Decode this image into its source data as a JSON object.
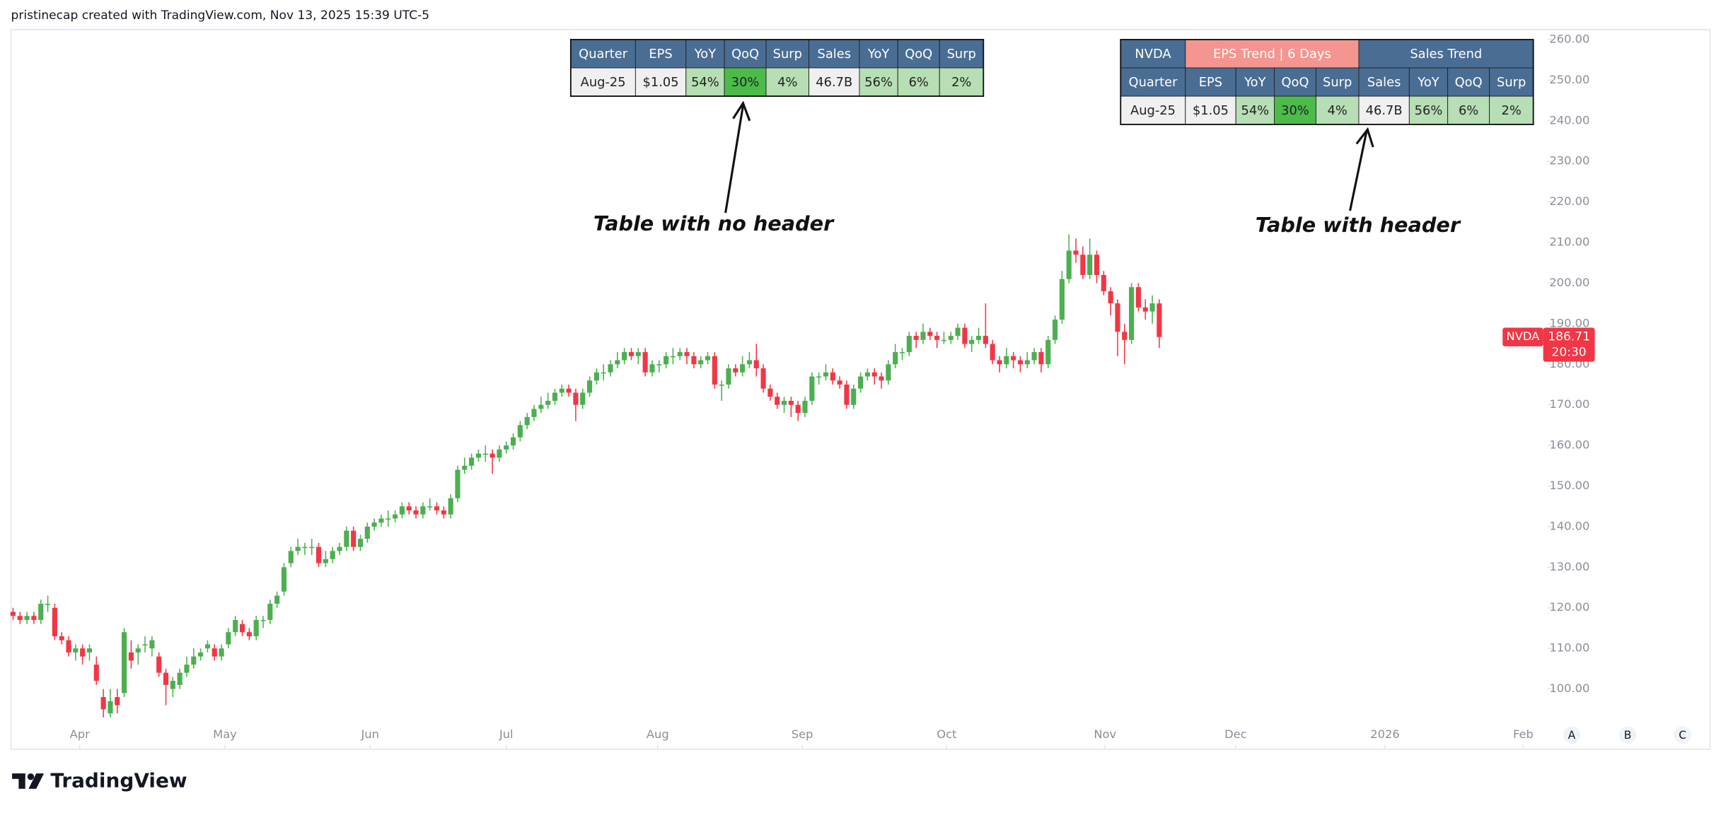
{
  "header": {
    "credit": "pristinecap created with TradingView.com, Nov 13, 2025 15:39 UTC-5"
  },
  "chart_data": {
    "type": "candlestick",
    "up_color": "#4caf50",
    "down_color": "#f23645",
    "series": [
      {
        "open": [
          119,
          118,
          117,
          118,
          117,
          121,
          120,
          113,
          112,
          109,
          110,
          109,
          106,
          98,
          94,
          98,
          99,
          109,
          109,
          111,
          110,
          108,
          104,
          100,
          101,
          104,
          106,
          108,
          110,
          110,
          108,
          111,
          114,
          116,
          114,
          113,
          117,
          117,
          121,
          124,
          131,
          134,
          135,
          135,
          135,
          131,
          132,
          134,
          135,
          139,
          135,
          137,
          140,
          141,
          142,
          142,
          143,
          145,
          144,
          143,
          145,
          145,
          144,
          143,
          147,
          154,
          155,
          157,
          158,
          158,
          157,
          159,
          160,
          162,
          165,
          167,
          169,
          170,
          171,
          173,
          174,
          173,
          170,
          173,
          176,
          178,
          178,
          180,
          181,
          183,
          182,
          183,
          178,
          180,
          180,
          182,
          182,
          183,
          182,
          180,
          181,
          182,
          175,
          175,
          179,
          178,
          180,
          181,
          179,
          174,
          172,
          170,
          171,
          170,
          168,
          171,
          177,
          177,
          178,
          176,
          175,
          170,
          174,
          177,
          178,
          177,
          176,
          180,
          183,
          183,
          187,
          186,
          188,
          187,
          186,
          186,
          187,
          189,
          185,
          186,
          187,
          185,
          181,
          180,
          182,
          181,
          180,
          181,
          183,
          180,
          186,
          191,
          201,
          208,
          207,
          202,
          207,
          202,
          198,
          195,
          188,
          186,
          199,
          194,
          193,
          195
        ],
        "high": [
          120,
          119,
          119,
          119,
          122,
          123,
          121,
          114,
          113,
          111,
          111,
          111,
          108,
          100,
          100,
          100,
          115,
          112,
          111,
          113,
          113,
          109,
          105,
          103,
          105,
          108,
          110,
          110,
          112,
          111,
          111,
          115,
          118,
          117,
          115,
          118,
          118,
          122,
          124,
          131,
          135,
          137,
          136,
          137,
          136,
          134,
          135,
          136,
          140,
          140,
          138,
          141,
          142,
          143,
          144,
          144,
          146,
          146,
          145,
          146,
          147,
          146,
          145,
          148,
          155,
          157,
          158,
          159,
          160,
          159,
          160,
          161,
          163,
          166,
          168,
          170,
          172,
          173,
          174,
          175,
          175,
          174,
          174,
          177,
          179,
          180,
          181,
          183,
          184,
          184,
          184,
          184,
          181,
          181,
          183,
          184,
          184,
          184,
          183,
          182,
          183,
          183,
          176,
          180,
          180,
          182,
          183,
          185,
          180,
          175,
          173,
          172,
          172,
          171,
          172,
          178,
          178,
          180,
          179,
          177,
          176,
          175,
          178,
          179,
          179,
          178,
          181,
          185,
          184,
          188,
          188,
          190,
          189,
          188,
          188,
          188,
          190,
          190,
          187,
          189,
          195,
          186,
          182,
          184,
          183,
          182,
          183,
          184,
          184,
          187,
          192,
          203,
          212,
          211,
          209,
          211,
          208,
          203,
          199,
          196,
          190,
          200,
          200,
          196,
          197,
          196
        ],
        "low": [
          117,
          116,
          116,
          116,
          116,
          119,
          112,
          111,
          108,
          107,
          106,
          107,
          101,
          93,
          93,
          94,
          98,
          105,
          106,
          109,
          108,
          103,
          96,
          98,
          100,
          103,
          105,
          107,
          109,
          107,
          107,
          110,
          113,
          113,
          112,
          112,
          115,
          116,
          120,
          123,
          130,
          133,
          133,
          133,
          130,
          130,
          131,
          133,
          134,
          134,
          134,
          136,
          139,
          140,
          140,
          141,
          142,
          143,
          142,
          142,
          144,
          143,
          142,
          142,
          146,
          153,
          154,
          156,
          156,
          153,
          156,
          158,
          159,
          161,
          164,
          166,
          168,
          169,
          170,
          172,
          172,
          166,
          169,
          172,
          175,
          176,
          177,
          179,
          180,
          181,
          180,
          177,
          177,
          178,
          179,
          180,
          181,
          180,
          179,
          179,
          180,
          174,
          171,
          174,
          177,
          177,
          179,
          177,
          173,
          171,
          169,
          168,
          167,
          166,
          167,
          170,
          175,
          176,
          175,
          174,
          169,
          169,
          173,
          176,
          175,
          174,
          175,
          179,
          181,
          182,
          184,
          185,
          186,
          184,
          185,
          185,
          186,
          184,
          183,
          185,
          184,
          180,
          178,
          179,
          179,
          178,
          179,
          180,
          178,
          179,
          185,
          190,
          200,
          205,
          201,
          201,
          200,
          197,
          192,
          182,
          180,
          185,
          193,
          191,
          190,
          184
        ],
        "close": [
          118,
          117,
          118,
          117,
          121,
          121,
          113,
          112,
          109,
          110,
          108,
          110,
          102,
          95,
          97,
          96,
          114,
          107,
          110,
          111,
          112,
          104,
          101,
          102,
          104,
          106,
          108,
          109,
          111,
          108,
          110,
          114,
          117,
          114,
          113,
          117,
          117,
          121,
          123,
          130,
          134,
          135,
          135,
          135,
          131,
          132,
          134,
          135,
          139,
          135,
          137,
          140,
          141,
          142,
          142,
          143,
          145,
          144,
          143,
          145,
          145,
          144,
          143,
          147,
          154,
          155,
          157,
          158,
          158,
          157,
          159,
          160,
          162,
          165,
          167,
          169,
          170,
          171,
          173,
          174,
          173,
          170,
          173,
          176,
          178,
          178,
          180,
          181,
          183,
          182,
          183,
          178,
          180,
          180,
          182,
          182,
          183,
          182,
          180,
          181,
          182,
          175,
          175,
          179,
          178,
          180,
          181,
          179,
          174,
          172,
          170,
          171,
          170,
          168,
          171,
          177,
          177,
          178,
          176,
          175,
          170,
          174,
          177,
          178,
          177,
          176,
          180,
          183,
          183,
          187,
          186,
          188,
          187,
          186,
          186,
          187,
          189,
          185,
          186,
          187,
          185,
          181,
          180,
          182,
          181,
          180,
          181,
          183,
          180,
          186,
          191,
          201,
          208,
          207,
          202,
          207,
          202,
          198,
          195,
          188,
          186,
          199,
          194,
          193,
          195,
          186.71
        ]
      }
    ],
    "xlim": [
      -0.3,
      220.9
    ],
    "xticks": [
      {
        "value": 9.6,
        "label": "Apr"
      },
      {
        "value": 30.5,
        "label": "May"
      },
      {
        "value": 51.4,
        "label": "Jun"
      },
      {
        "value": 71.0,
        "label": "Jul"
      },
      {
        "value": 92.8,
        "label": "Aug"
      },
      {
        "value": 113.6,
        "label": "Sep"
      },
      {
        "value": 134.4,
        "label": "Oct"
      },
      {
        "value": 157.2,
        "label": "Nov"
      },
      {
        "value": 176.0,
        "label": "Dec"
      },
      {
        "value": 197.5,
        "label": "2026"
      },
      {
        "value": 217.4,
        "label": "Feb"
      }
    ],
    "ylim": [
      85.14,
      262.43
    ],
    "yticks": [
      {
        "value": 100,
        "label": "100.00"
      },
      {
        "value": 110,
        "label": "110.00"
      },
      {
        "value": 120,
        "label": "120.00"
      },
      {
        "value": 130,
        "label": "130.00"
      },
      {
        "value": 140,
        "label": "140.00"
      },
      {
        "value": 150,
        "label": "150.00"
      },
      {
        "value": 160,
        "label": "160.00"
      },
      {
        "value": 170,
        "label": "170.00"
      },
      {
        "value": 180,
        "label": "180.00"
      },
      {
        "value": 190,
        "label": "190.00"
      },
      {
        "value": 200,
        "label": "200.00"
      },
      {
        "value": 210,
        "label": "210.00"
      },
      {
        "value": 220,
        "label": "220.00"
      },
      {
        "value": 230,
        "label": "230.00"
      },
      {
        "value": 240,
        "label": "240.00"
      },
      {
        "value": 250,
        "label": "250.00"
      },
      {
        "value": 260,
        "label": "260.00"
      }
    ],
    "last_price": {
      "symbol": "NVDA",
      "value": 186.71,
      "countdown": "20:30"
    }
  },
  "tables": [
    {
      "columns": [
        "Quarter",
        "EPS",
        "YoY",
        "QoQ",
        "Surp",
        "Sales",
        "YoY",
        "QoQ",
        "Surp"
      ],
      "rows": [
        [
          "Aug-25",
          "$1.05",
          "54%",
          "30%",
          "4%",
          "46.7B",
          "56%",
          "6%",
          "2%"
        ]
      ],
      "row_colors": [
        [
          "#f0f0f0",
          "#f0f0f0",
          "#b7deb4",
          "#4cbb4a",
          "#b7deb4",
          "#f0f0f0",
          "#b7deb4",
          "#b7deb4",
          "#b7deb4"
        ]
      ]
    },
    {
      "title_row": [
        "NVDA",
        "EPS Trend | 6 Days",
        "Sales Trend"
      ],
      "columns": [
        "Quarter",
        "EPS",
        "YoY",
        "QoQ",
        "Surp",
        "Sales",
        "YoY",
        "QoQ",
        "Surp"
      ],
      "rows": [
        [
          "Aug-25",
          "$1.05",
          "54%",
          "30%",
          "4%",
          "46.7B",
          "56%",
          "6%",
          "2%"
        ]
      ],
      "row_colors": [
        [
          "#f0f0f0",
          "#f0f0f0",
          "#b7deb4",
          "#4cbb4a",
          "#b7deb4",
          "#f0f0f0",
          "#b7deb4",
          "#b7deb4",
          "#b7deb4"
        ]
      ]
    }
  ],
  "annotations": [
    "Table with no header",
    "Table with header"
  ],
  "scale_buttons": [
    "A",
    "B",
    "C"
  ],
  "footer": {
    "logo": "TradingView"
  }
}
